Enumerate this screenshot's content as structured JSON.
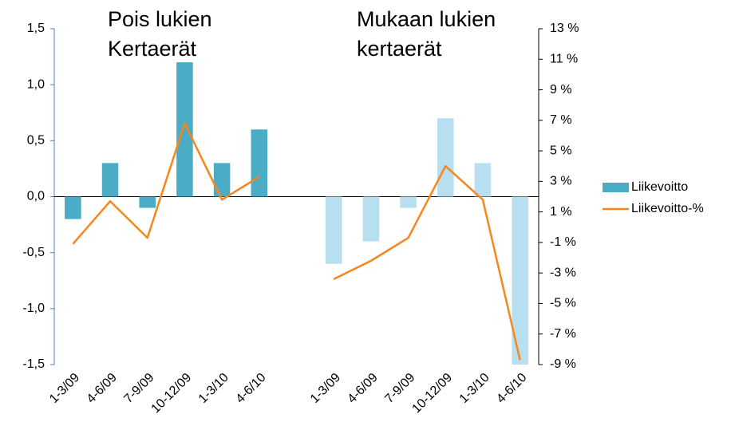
{
  "chart_data": {
    "type": "bar_line",
    "annotations": [
      [
        "Pois lukien",
        "Kertaerät"
      ],
      [
        "Mukaan lukien",
        "kertaerät"
      ]
    ],
    "categories": [
      "1-3/09",
      "4-6/09",
      "7-9/09",
      "10-12/09",
      "1-3/10",
      "4-6/10",
      null,
      "1-3/09",
      "4-6/09",
      "7-9/09",
      "10-12/09",
      "1-3/10",
      "4-6/10"
    ],
    "series": [
      {
        "name": "Liikevoitto",
        "type": "bar",
        "color": "#4bacc6",
        "colors": [
          "#4bacc6",
          "#4bacc6",
          "#4bacc6",
          "#4bacc6",
          "#4bacc6",
          "#4bacc6",
          null,
          "#b7dff0",
          "#b7dff0",
          "#b7dff0",
          "#b7dff0",
          "#b7dff0",
          "#b7dff0"
        ],
        "values": [
          -0.2,
          0.3,
          -0.1,
          1.2,
          0.3,
          0.6,
          null,
          -0.6,
          -0.4,
          -0.1,
          0.7,
          0.3,
          -1.5
        ]
      },
      {
        "name": "Liikevoitto-%",
        "type": "line",
        "axis": "y2",
        "color": "#f7861d",
        "values": [
          -1.1,
          1.7,
          -0.7,
          6.8,
          1.8,
          3.3,
          null,
          -3.4,
          -2.2,
          -0.7,
          4.0,
          1.8,
          -8.7
        ]
      }
    ],
    "ylim": [
      -1.5,
      1.5
    ],
    "yticks": [
      {
        "value": -1.5,
        "label": "-1,5"
      },
      {
        "value": -1.0,
        "label": "-1,0"
      },
      {
        "value": -0.5,
        "label": "-0,5"
      },
      {
        "value": 0,
        "label": "0,0"
      },
      {
        "value": 0.5,
        "label": "0,5"
      },
      {
        "value": 1.0,
        "label": "1,0"
      },
      {
        "value": 1.5,
        "label": "1,5"
      }
    ],
    "y2lim": [
      -9,
      13
    ],
    "y2ticks": [
      {
        "value": -9,
        "label": "-9 %"
      },
      {
        "value": -7,
        "label": "-7 %"
      },
      {
        "value": -5,
        "label": "-5 %"
      },
      {
        "value": -3,
        "label": "-3 %"
      },
      {
        "value": -1,
        "label": "-1 %"
      },
      {
        "value": 1,
        "label": "1 %"
      },
      {
        "value": 3,
        "label": "3 %"
      },
      {
        "value": 5,
        "label": "5 %"
      },
      {
        "value": 7,
        "label": "7 %"
      },
      {
        "value": 9,
        "label": "9 %"
      },
      {
        "value": 11,
        "label": "11 %"
      },
      {
        "value": 13,
        "label": "13 %"
      }
    ],
    "legend": "right"
  }
}
